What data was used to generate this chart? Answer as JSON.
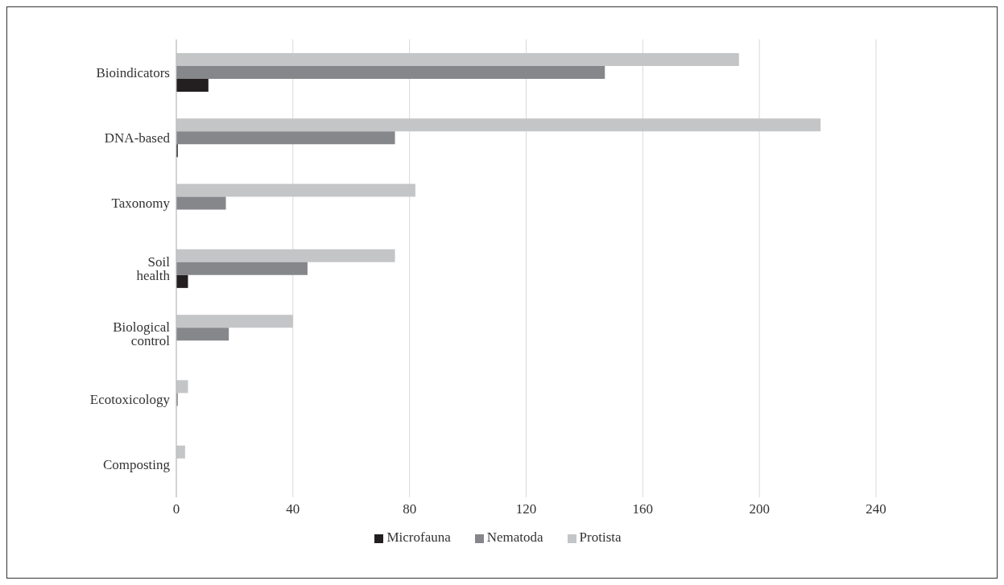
{
  "chart_data": {
    "type": "bar",
    "orientation": "horizontal",
    "categories": [
      "Bioindicators",
      "DNA-based",
      "Taxonomy",
      "Soil health",
      "Biological control",
      "Ecotoxicology",
      "Composting"
    ],
    "series": [
      {
        "name": "Protista",
        "color": "#c4c5c7",
        "values": [
          193,
          221,
          82,
          75,
          40,
          4,
          3
        ]
      },
      {
        "name": "Nematoda",
        "color": "#86878b",
        "values": [
          147,
          75,
          17,
          45,
          18,
          0.5,
          null
        ]
      },
      {
        "name": "Microfauna",
        "color": "#231f20",
        "values": [
          11,
          0.5,
          null,
          4,
          null,
          null,
          null
        ]
      }
    ],
    "xlim": [
      0,
      240
    ],
    "xticks": [
      0,
      40,
      80,
      120,
      160,
      200,
      240
    ],
    "grid": "x",
    "legend": "bottom"
  }
}
